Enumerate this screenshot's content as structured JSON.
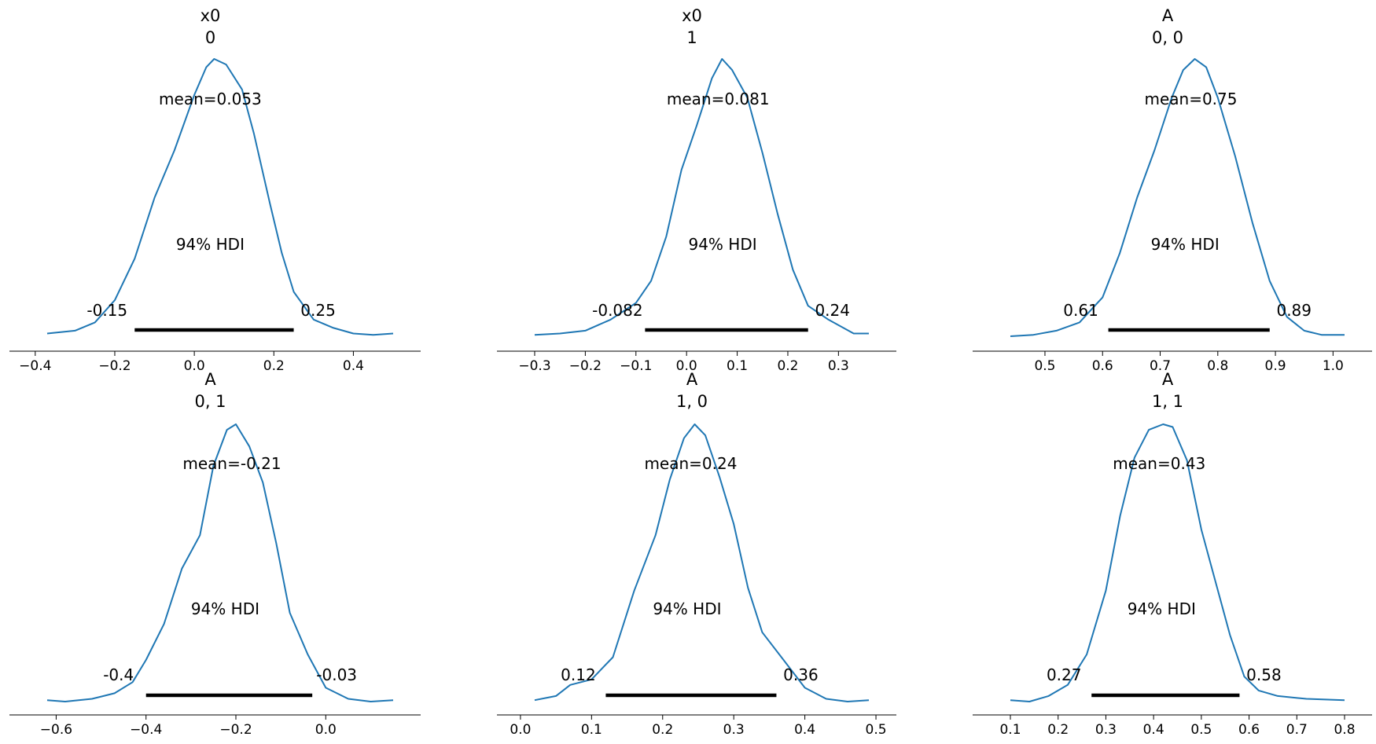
{
  "chart_data": [
    {
      "type": "area",
      "title_lines": [
        "x0",
        "0"
      ],
      "mean_label": "mean=0.053",
      "hdi_label": "94% HDI",
      "hdi": {
        "low": -0.15,
        "high": 0.25,
        "low_label": "-0.15",
        "high_label": "0.25"
      },
      "xlim": [
        -0.37,
        0.5
      ],
      "ticks": [
        -0.4,
        -0.2,
        0.0,
        0.2,
        0.4
      ],
      "tick_labels": [
        "−0.4",
        "−0.2",
        "0.0",
        "0.2",
        "0.4"
      ],
      "density": [
        [
          -0.37,
          0.01
        ],
        [
          -0.3,
          0.02
        ],
        [
          -0.25,
          0.05
        ],
        [
          -0.2,
          0.13
        ],
        [
          -0.15,
          0.28
        ],
        [
          -0.1,
          0.5
        ],
        [
          -0.05,
          0.67
        ],
        [
          0.0,
          0.87
        ],
        [
          0.03,
          0.97
        ],
        [
          0.05,
          1.0
        ],
        [
          0.08,
          0.98
        ],
        [
          0.12,
          0.89
        ],
        [
          0.15,
          0.73
        ],
        [
          0.19,
          0.48
        ],
        [
          0.22,
          0.3
        ],
        [
          0.25,
          0.16
        ],
        [
          0.3,
          0.06
        ],
        [
          0.35,
          0.03
        ],
        [
          0.4,
          0.01
        ],
        [
          0.45,
          0.005
        ],
        [
          0.5,
          0.01
        ]
      ],
      "color": "#1f77b4"
    },
    {
      "type": "area",
      "title_lines": [
        "x0",
        "1"
      ],
      "mean_label": "mean=0.081",
      "hdi_label": "94% HDI",
      "hdi": {
        "low": -0.082,
        "high": 0.24,
        "low_label": "-0.082",
        "high_label": "0.24"
      },
      "xlim": [
        -0.3,
        0.36
      ],
      "ticks": [
        -0.3,
        -0.2,
        -0.1,
        0.0,
        0.1,
        0.2,
        0.3
      ],
      "tick_labels": [
        "−0.3",
        "−0.2",
        "−0.1",
        "0.0",
        "0.1",
        "0.2",
        "0.3"
      ],
      "density": [
        [
          -0.3,
          0.005
        ],
        [
          -0.25,
          0.01
        ],
        [
          -0.2,
          0.02
        ],
        [
          -0.15,
          0.06
        ],
        [
          -0.1,
          0.12
        ],
        [
          -0.07,
          0.2
        ],
        [
          -0.04,
          0.36
        ],
        [
          -0.01,
          0.6
        ],
        [
          0.02,
          0.76
        ],
        [
          0.05,
          0.93
        ],
        [
          0.07,
          1.0
        ],
        [
          0.09,
          0.96
        ],
        [
          0.12,
          0.86
        ],
        [
          0.15,
          0.66
        ],
        [
          0.18,
          0.44
        ],
        [
          0.21,
          0.24
        ],
        [
          0.24,
          0.11
        ],
        [
          0.28,
          0.06
        ],
        [
          0.3,
          0.04
        ],
        [
          0.33,
          0.01
        ],
        [
          0.36,
          0.01
        ]
      ],
      "color": "#1f77b4"
    },
    {
      "type": "area",
      "title_lines": [
        "A",
        "0, 0"
      ],
      "mean_label": "mean=0.75",
      "hdi_label": "94% HDI",
      "hdi": {
        "low": 0.61,
        "high": 0.89,
        "low_label": "0.61",
        "high_label": "0.89"
      },
      "xlim": [
        0.44,
        1.02
      ],
      "ticks": [
        0.5,
        0.6,
        0.7,
        0.8,
        0.9,
        1.0
      ],
      "tick_labels": [
        "0.5",
        "0.6",
        "0.7",
        "0.8",
        "0.9",
        "1.0"
      ],
      "density": [
        [
          0.44,
          0.0
        ],
        [
          0.48,
          0.005
        ],
        [
          0.52,
          0.02
        ],
        [
          0.56,
          0.05
        ],
        [
          0.6,
          0.14
        ],
        [
          0.63,
          0.3
        ],
        [
          0.66,
          0.5
        ],
        [
          0.69,
          0.67
        ],
        [
          0.72,
          0.86
        ],
        [
          0.74,
          0.96
        ],
        [
          0.76,
          1.0
        ],
        [
          0.78,
          0.97
        ],
        [
          0.8,
          0.86
        ],
        [
          0.83,
          0.65
        ],
        [
          0.86,
          0.41
        ],
        [
          0.89,
          0.2
        ],
        [
          0.92,
          0.07
        ],
        [
          0.95,
          0.02
        ],
        [
          0.98,
          0.005
        ],
        [
          1.02,
          0.005
        ]
      ],
      "color": "#1f77b4"
    },
    {
      "type": "area",
      "title_lines": [
        "A",
        "0, 1"
      ],
      "mean_label": "mean=-0.21",
      "hdi_label": "94% HDI",
      "hdi": {
        "low": -0.4,
        "high": -0.03,
        "low_label": "-0.4",
        "high_label": "-0.03"
      },
      "xlim": [
        -0.62,
        0.15
      ],
      "ticks": [
        -0.6,
        -0.4,
        -0.2,
        0.0
      ],
      "tick_labels": [
        "−0.6",
        "−0.4",
        "−0.2",
        "0.0"
      ],
      "density": [
        [
          -0.62,
          0.005
        ],
        [
          -0.58,
          0.0
        ],
        [
          -0.52,
          0.01
        ],
        [
          -0.47,
          0.03
        ],
        [
          -0.43,
          0.07
        ],
        [
          -0.4,
          0.15
        ],
        [
          -0.36,
          0.28
        ],
        [
          -0.32,
          0.48
        ],
        [
          -0.28,
          0.6
        ],
        [
          -0.25,
          0.85
        ],
        [
          -0.22,
          0.98
        ],
        [
          -0.2,
          1.0
        ],
        [
          -0.17,
          0.92
        ],
        [
          -0.14,
          0.79
        ],
        [
          -0.11,
          0.57
        ],
        [
          -0.08,
          0.32
        ],
        [
          -0.04,
          0.17
        ],
        [
          0.0,
          0.05
        ],
        [
          0.05,
          0.01
        ],
        [
          0.1,
          0.0
        ],
        [
          0.15,
          0.005
        ]
      ],
      "color": "#1f77b4"
    },
    {
      "type": "area",
      "title_lines": [
        "A",
        "1, 0"
      ],
      "mean_label": "mean=0.24",
      "hdi_label": "94% HDI",
      "hdi": {
        "low": 0.12,
        "high": 0.36,
        "low_label": "0.12",
        "high_label": "0.36"
      },
      "xlim": [
        0.02,
        0.49
      ],
      "ticks": [
        0.0,
        0.1,
        0.2,
        0.3,
        0.4,
        0.5
      ],
      "tick_labels": [
        "0.0",
        "0.1",
        "0.2",
        "0.3",
        "0.4",
        "0.5"
      ],
      "density": [
        [
          0.02,
          0.005
        ],
        [
          0.05,
          0.02
        ],
        [
          0.07,
          0.06
        ],
        [
          0.1,
          0.08
        ],
        [
          0.13,
          0.16
        ],
        [
          0.16,
          0.4
        ],
        [
          0.19,
          0.6
        ],
        [
          0.21,
          0.8
        ],
        [
          0.23,
          0.95
        ],
        [
          0.245,
          1.0
        ],
        [
          0.26,
          0.96
        ],
        [
          0.28,
          0.81
        ],
        [
          0.3,
          0.64
        ],
        [
          0.32,
          0.41
        ],
        [
          0.34,
          0.25
        ],
        [
          0.37,
          0.15
        ],
        [
          0.4,
          0.05
        ],
        [
          0.43,
          0.01
        ],
        [
          0.46,
          0.0
        ],
        [
          0.49,
          0.005
        ]
      ],
      "color": "#1f77b4"
    },
    {
      "type": "area",
      "title_lines": [
        "A",
        "1, 1"
      ],
      "mean_label": "mean=0.43",
      "hdi_label": "94% HDI",
      "hdi": {
        "low": 0.27,
        "high": 0.58,
        "low_label": "0.27",
        "high_label": "0.58"
      },
      "xlim": [
        0.1,
        0.8
      ],
      "ticks": [
        0.1,
        0.2,
        0.3,
        0.4,
        0.5,
        0.6,
        0.7,
        0.8
      ],
      "tick_labels": [
        "0.1",
        "0.2",
        "0.3",
        "0.4",
        "0.5",
        "0.6",
        "0.7",
        "0.8"
      ],
      "density": [
        [
          0.1,
          0.005
        ],
        [
          0.14,
          0.0
        ],
        [
          0.18,
          0.02
        ],
        [
          0.22,
          0.06
        ],
        [
          0.26,
          0.17
        ],
        [
          0.3,
          0.4
        ],
        [
          0.33,
          0.67
        ],
        [
          0.36,
          0.88
        ],
        [
          0.39,
          0.98
        ],
        [
          0.42,
          1.0
        ],
        [
          0.44,
          0.99
        ],
        [
          0.47,
          0.87
        ],
        [
          0.5,
          0.62
        ],
        [
          0.53,
          0.43
        ],
        [
          0.56,
          0.24
        ],
        [
          0.59,
          0.09
        ],
        [
          0.62,
          0.04
        ],
        [
          0.66,
          0.02
        ],
        [
          0.72,
          0.01
        ],
        [
          0.8,
          0.005
        ]
      ],
      "color": "#1f77b4"
    }
  ]
}
